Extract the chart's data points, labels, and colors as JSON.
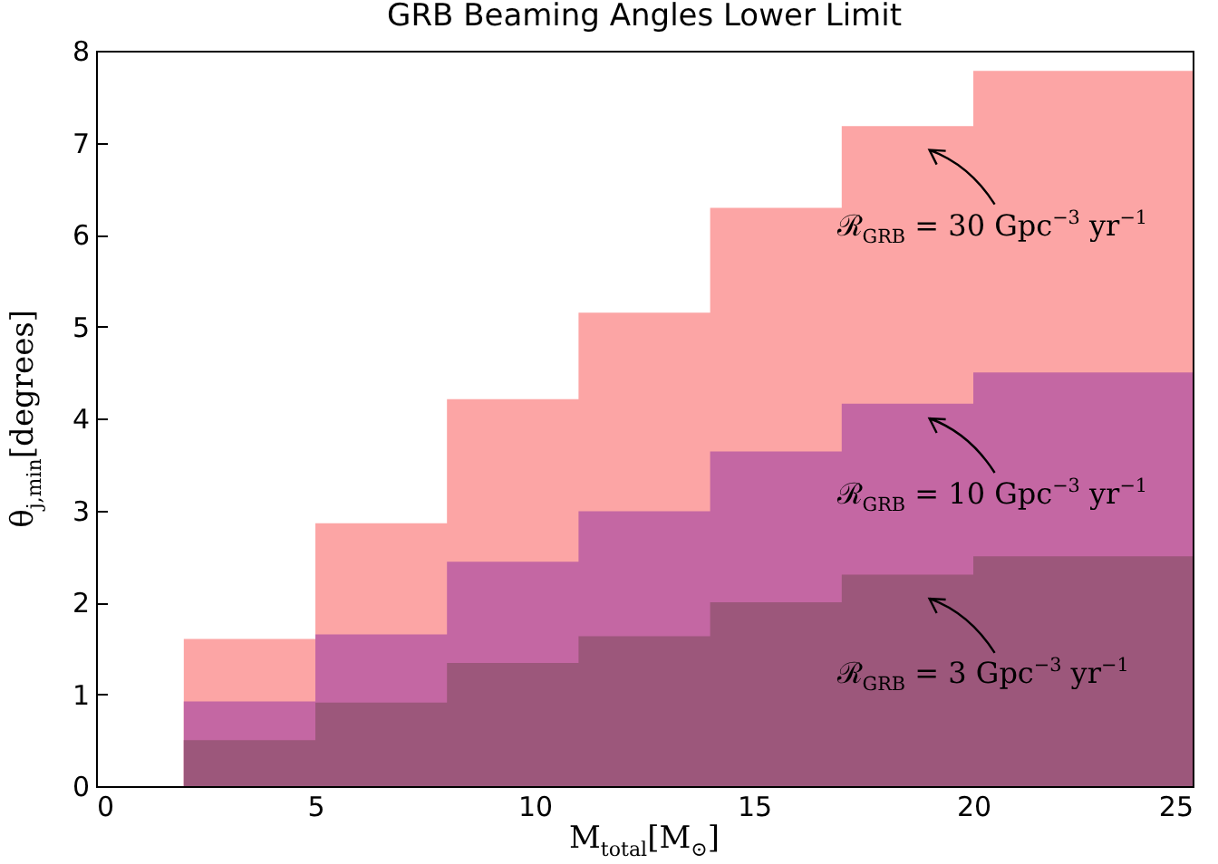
{
  "chart_data": {
    "type": "area",
    "title": "GRB Beaming Angles Lower Limit",
    "xlabel": "M$_{total}$[M$_{⊙}$]",
    "ylabel": "θ$_{j,min}$[degrees]",
    "x": [
      2,
      5,
      8,
      11,
      14,
      17,
      20,
      25
    ],
    "series": [
      {
        "color": "#fca5a5",
        "values": [
          1.6,
          2.86,
          4.21,
          5.15,
          6.29,
          7.18,
          7.78,
          7.78
        ]
      },
      {
        "color": "#c467a3",
        "values": [
          0.92,
          1.65,
          2.44,
          2.99,
          3.64,
          4.16,
          4.5,
          4.5
        ]
      },
      {
        "color": "#9c577b",
        "values": [
          0.5,
          0.91,
          1.34,
          1.63,
          2.0,
          2.3,
          2.5,
          2.5
        ]
      }
    ],
    "xlim": [
      0,
      25
    ],
    "xticks": [
      0,
      5,
      10,
      15,
      20,
      25
    ],
    "ylim": [
      0,
      8
    ],
    "yticks": [
      0,
      1,
      2,
      3,
      4,
      5,
      6,
      7,
      8
    ],
    "grid": false,
    "annotations": [
      "ℛ$_{GRB}$ = 30 Gpc$^{−3}$ yr$^{−1}$",
      "ℛ$_{GRB}$ = 10 Gpc$^{−3}$ yr$^{−1}$",
      "ℛ$_{GRB}$ = 3 Gpc$^{−3}$ yr$^{−1}$"
    ]
  }
}
